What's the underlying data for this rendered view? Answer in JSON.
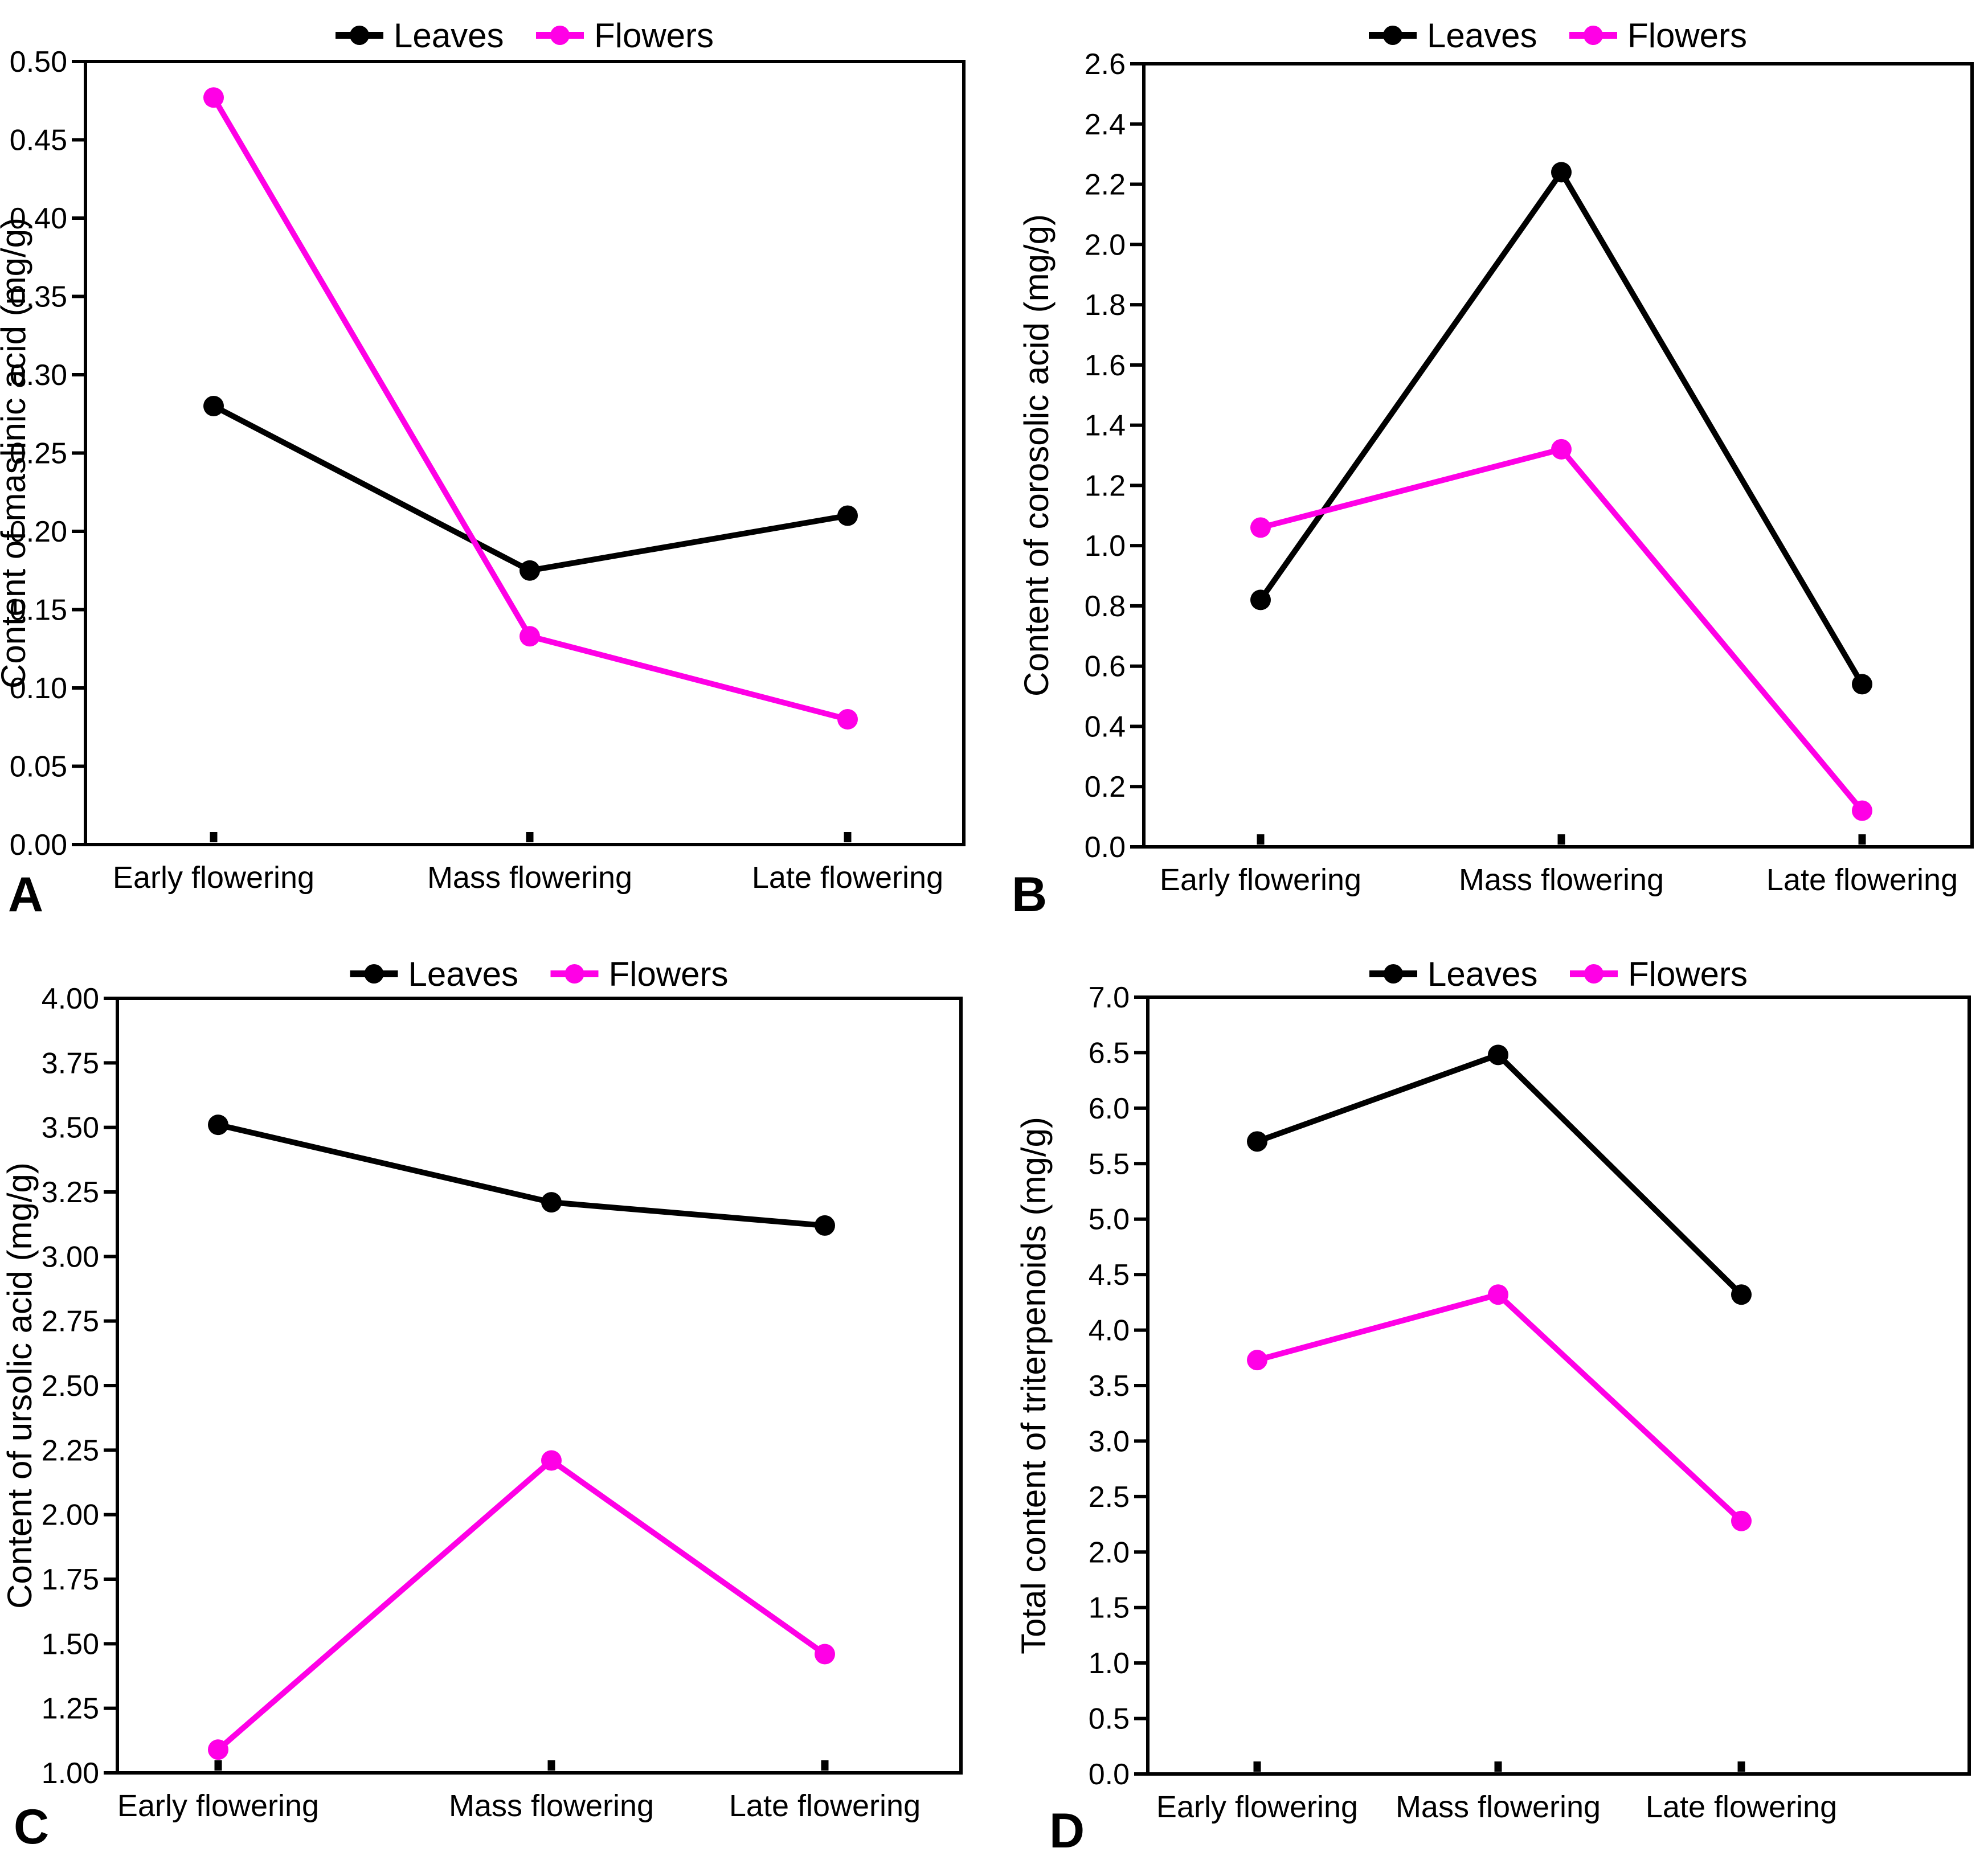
{
  "figure": {
    "background": "#ffffff",
    "series_colors": {
      "leaves": "#000000",
      "flowers": "#ff00e6"
    },
    "legend": {
      "position": "top",
      "items": [
        {
          "label": "Leaves",
          "color": "#000000"
        },
        {
          "label": "Flowers",
          "color": "#ff00e6"
        }
      ]
    },
    "x_categories": [
      "Early flowering",
      "Mass flowering",
      "Late flowering"
    ]
  },
  "chart_data": [
    {
      "type": "line",
      "panel_label": "A",
      "ylabel": "Content of maslinic acid (mg/g)",
      "xlabel": "",
      "categories": [
        "Early flowering",
        "Mass flowering",
        "Late flowering"
      ],
      "ylim": [
        0.0,
        0.5
      ],
      "ystep": 0.05,
      "ydecimals": 2,
      "grid": false,
      "legend_position": "top",
      "series": [
        {
          "name": "Leaves",
          "color": "#000000",
          "values": [
            0.28,
            0.175,
            0.21
          ]
        },
        {
          "name": "Flowers",
          "color": "#ff00e6",
          "values": [
            0.477,
            0.133,
            0.08
          ]
        }
      ]
    },
    {
      "type": "line",
      "panel_label": "B",
      "ylabel": "Content of corosolic acid (mg/g)",
      "xlabel": "",
      "categories": [
        "Early flowering",
        "Mass flowering",
        "Late flowering"
      ],
      "ylim": [
        0.0,
        2.6
      ],
      "ystep": 0.2,
      "ydecimals": 1,
      "grid": false,
      "legend_position": "top",
      "series": [
        {
          "name": "Leaves",
          "color": "#000000",
          "values": [
            0.82,
            2.24,
            0.54
          ]
        },
        {
          "name": "Flowers",
          "color": "#ff00e6",
          "values": [
            1.06,
            1.32,
            0.12
          ]
        }
      ]
    },
    {
      "type": "line",
      "panel_label": "C",
      "ylabel": "Content of ursolic acid (mg/g)",
      "xlabel": "",
      "categories": [
        "Early flowering",
        "Mass flowering",
        "Late flowering"
      ],
      "ylim": [
        1.0,
        4.0
      ],
      "ystep": 0.25,
      "ydecimals": 2,
      "grid": false,
      "legend_position": "top",
      "series": [
        {
          "name": "Leaves",
          "color": "#000000",
          "values": [
            3.51,
            3.21,
            3.12
          ]
        },
        {
          "name": "Flowers",
          "color": "#ff00e6",
          "values": [
            1.09,
            2.21,
            1.46
          ]
        }
      ]
    },
    {
      "type": "line",
      "panel_label": "D",
      "ylabel": "Total content of triterpenoids (mg/g)",
      "xlabel": "",
      "categories": [
        "Early flowering",
        "Mass flowering",
        "Late flowering"
      ],
      "ylim": [
        0.0,
        7.0
      ],
      "ystep": 0.5,
      "ydecimals": 1,
      "grid": false,
      "legend_position": "top",
      "series": [
        {
          "name": "Leaves",
          "color": "#000000",
          "values": [
            5.7,
            6.48,
            4.32
          ]
        },
        {
          "name": "Flowers",
          "color": "#ff00e6",
          "values": [
            3.73,
            4.32,
            2.28
          ]
        }
      ]
    }
  ]
}
